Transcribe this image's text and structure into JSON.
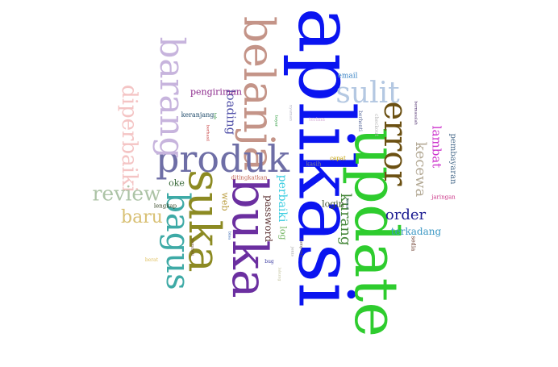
{
  "words": [
    {
      "text": "aplikasi",
      "color": "#0a14f0"
    },
    {
      "text": "update",
      "color": "#2ecc2e"
    },
    {
      "text": "buka",
      "color": "#6b2fa0"
    },
    {
      "text": "belanja",
      "color": "#c49488"
    },
    {
      "text": "suka",
      "color": "#8c8a22"
    },
    {
      "text": "produk",
      "color": "#6e6ea6"
    },
    {
      "text": "barang",
      "color": "#c7b4dd"
    },
    {
      "text": "bagus",
      "color": "#3eaaa6"
    },
    {
      "text": "error",
      "color": "#6b5012"
    },
    {
      "text": "sulit",
      "color": "#b4c8e2"
    },
    {
      "text": "diperbaiki",
      "color": "#f4c4c4"
    },
    {
      "text": "review",
      "color": "#acc3a6"
    },
    {
      "text": "baru",
      "color": "#d8c074"
    },
    {
      "text": "order",
      "color": "#1a1a90"
    },
    {
      "text": "kurang",
      "color": "#48883c"
    },
    {
      "text": "kecewa",
      "color": "#b4aa96"
    },
    {
      "text": "lambat",
      "color": "#cc33cc"
    },
    {
      "text": "loading",
      "color": "#5050a8"
    },
    {
      "text": "perbaiki",
      "color": "#38cce0"
    },
    {
      "text": "password",
      "color": "#5a3030"
    },
    {
      "text": "terkadang",
      "color": "#3c98c4"
    },
    {
      "text": "pengiriman",
      "color": "#8c2a8c"
    },
    {
      "text": "pembayaran",
      "color": "#4a6c8c"
    },
    {
      "text": "web",
      "color": "#b89a3a"
    },
    {
      "text": "log",
      "color": "#7ab86a"
    },
    {
      "text": "login",
      "color": "#3c5030"
    },
    {
      "text": "oke",
      "color": "#3a6a3a"
    },
    {
      "text": "email",
      "color": "#3c84c4"
    },
    {
      "text": "keranjang",
      "color": "#1e4a6a"
    },
    {
      "text": "ditingkatkan",
      "color": "#c46a5a"
    },
    {
      "text": "jaringan",
      "color": "#cc3a8a"
    },
    {
      "text": "lengkap",
      "color": "#3a4a2a"
    },
    {
      "text": "cepat",
      "color": "#c4a000"
    },
    {
      "text": "kasih",
      "color": "#8c8c8c"
    },
    {
      "text": "sedia",
      "color": "#6a3a2a"
    },
    {
      "text": "berhenti",
      "color": "#5a6a9a"
    },
    {
      "text": "checkout",
      "color": "#b4b4b4"
    },
    {
      "text": "berat",
      "color": "#e0c060"
    },
    {
      "text": "bug",
      "color": "#3a3aa0"
    },
    {
      "text": "bayar",
      "color": "#2a9a3a"
    },
    {
      "text": "nyaman",
      "color": "#b4b4c4"
    },
    {
      "text": "terima",
      "color": "#d8b4d8"
    },
    {
      "text": "kenal",
      "color": "#2a4a6a"
    },
    {
      "text": "kampung",
      "color": "#5a4a4a"
    },
    {
      "text": "jenis",
      "color": "#a0a0a0"
    },
    {
      "text": "lakung",
      "color": "#c4c4a0"
    },
    {
      "text": "membeli",
      "color": "#6a4a2a"
    },
    {
      "text": "bisa",
      "color": "#3a6ab4"
    },
    {
      "text": "berhasil",
      "color": "#c43a3a"
    },
    {
      "text": "tak",
      "color": "#2a8a3a"
    },
    {
      "text": "bermasalah",
      "color": "#4a2a6a"
    }
  ]
}
